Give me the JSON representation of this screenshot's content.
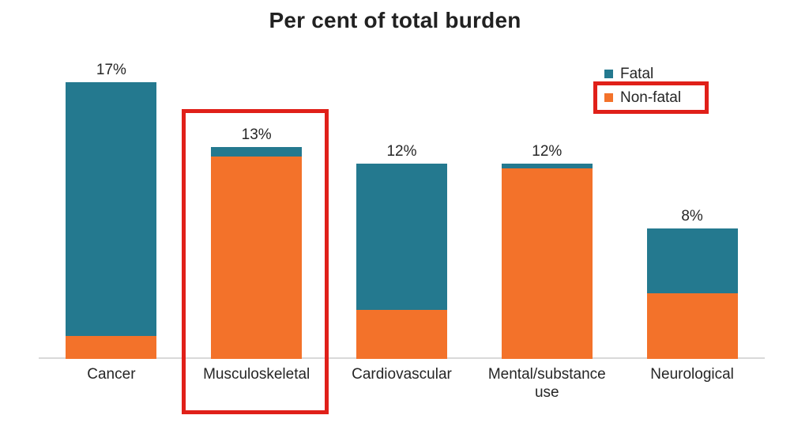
{
  "title": "Per cent of total burden",
  "legend": {
    "items": [
      {
        "label": "Fatal",
        "color": "#24798f"
      },
      {
        "label": "Non-fatal",
        "color": "#f3722a",
        "highlighted": true
      }
    ]
  },
  "highlights": [
    {
      "target": "musculoskeletal-bar",
      "color": "#e02019"
    },
    {
      "target": "non-fatal-legend-entry",
      "color": "#e02019"
    }
  ],
  "chart_data": {
    "type": "bar",
    "stacked": true,
    "title": "Per cent of total burden",
    "categories": [
      "Cancer",
      "Musculoskeletal",
      "Cardiovascular",
      "Mental/substance use",
      "Neurological"
    ],
    "series": [
      {
        "name": "Fatal",
        "color": "#24798f",
        "values": [
          15.6,
          0.6,
          9.0,
          0.3,
          4.0
        ]
      },
      {
        "name": "Non-fatal",
        "color": "#f3722a",
        "values": [
          1.4,
          12.4,
          3.0,
          11.7,
          4.0
        ]
      }
    ],
    "totals": [
      17,
      13,
      12,
      12,
      8
    ],
    "total_labels": [
      "17%",
      "13%",
      "12%",
      "12%",
      "8%"
    ],
    "xlabel": "",
    "ylabel": "",
    "ylim": [
      0,
      18.5
    ],
    "grid": false,
    "legend_position": "top-right",
    "axis_line_color": "#d9d9d9",
    "annotations": [
      "red box around Musculoskeletal bar",
      "red box around Non-fatal legend entry"
    ]
  }
}
